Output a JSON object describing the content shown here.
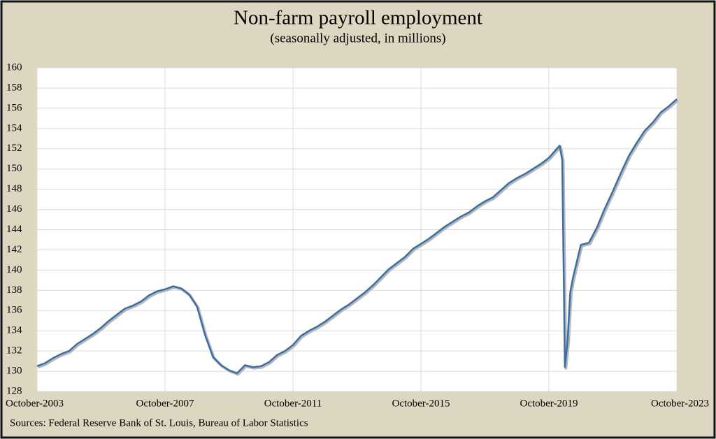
{
  "chart_data": {
    "type": "line",
    "title": "Non-farm payroll employment",
    "subtitle": "(seasonally adjusted, in millions)",
    "source": "Sources: Federal Reserve Bank of St. Louis, Bureau of Labor Statistics",
    "x": [
      "2003-10",
      "2004-01",
      "2004-04",
      "2004-07",
      "2004-10",
      "2005-01",
      "2005-04",
      "2005-07",
      "2005-10",
      "2006-01",
      "2006-04",
      "2006-07",
      "2006-10",
      "2007-01",
      "2007-04",
      "2007-07",
      "2007-10",
      "2008-01",
      "2008-04",
      "2008-07",
      "2008-10",
      "2009-01",
      "2009-04",
      "2009-07",
      "2009-10",
      "2010-01",
      "2010-04",
      "2010-07",
      "2010-10",
      "2011-01",
      "2011-04",
      "2011-07",
      "2011-10",
      "2012-01",
      "2012-04",
      "2012-07",
      "2012-10",
      "2013-01",
      "2013-04",
      "2013-07",
      "2013-10",
      "2014-01",
      "2014-04",
      "2014-07",
      "2014-10",
      "2015-01",
      "2015-04",
      "2015-07",
      "2015-10",
      "2016-01",
      "2016-04",
      "2016-07",
      "2016-10",
      "2017-01",
      "2017-04",
      "2017-07",
      "2017-10",
      "2018-01",
      "2018-04",
      "2018-07",
      "2018-10",
      "2019-01",
      "2019-04",
      "2019-07",
      "2019-10",
      "2020-01",
      "2020-02",
      "2020-03",
      "2020-04",
      "2020-05",
      "2020-06",
      "2020-07",
      "2020-10",
      "2021-01",
      "2021-04",
      "2021-07",
      "2021-10",
      "2022-01",
      "2022-04",
      "2022-07",
      "2022-10",
      "2023-01",
      "2023-04",
      "2023-07",
      "2023-10"
    ],
    "series": [
      {
        "name": "Non-farm payroll employment",
        "color": "#3a6ea5",
        "values": [
          130.5,
          130.8,
          131.3,
          131.7,
          132.0,
          132.7,
          133.2,
          133.7,
          134.3,
          135.0,
          135.6,
          136.2,
          136.5,
          136.9,
          137.5,
          137.9,
          138.1,
          138.4,
          138.2,
          137.6,
          136.4,
          133.6,
          131.4,
          130.6,
          130.1,
          129.8,
          130.6,
          130.4,
          130.5,
          130.9,
          131.6,
          132.0,
          132.6,
          133.5,
          134.0,
          134.4,
          134.9,
          135.5,
          136.1,
          136.6,
          137.2,
          137.8,
          138.5,
          139.3,
          140.1,
          140.7,
          141.3,
          142.1,
          142.6,
          143.1,
          143.7,
          144.3,
          144.8,
          145.3,
          145.7,
          146.3,
          146.8,
          147.2,
          147.9,
          148.6,
          149.1,
          149.5,
          150.0,
          150.5,
          151.1,
          152.0,
          152.3,
          150.9,
          130.4,
          133.0,
          137.8,
          139.2,
          142.5,
          142.7,
          144.2,
          146.1,
          147.8,
          149.6,
          151.3,
          152.6,
          153.8,
          154.6,
          155.6,
          156.2,
          156.9
        ]
      }
    ],
    "ylim": [
      128,
      160
    ],
    "yticks": [
      128,
      130,
      132,
      134,
      136,
      138,
      140,
      142,
      144,
      146,
      148,
      150,
      152,
      154,
      156,
      158,
      160
    ],
    "xlim": [
      "2003-10",
      "2023-10"
    ],
    "xticks": [
      {
        "value": "2003-10",
        "label": "October-2003"
      },
      {
        "value": "2007-10",
        "label": "October-2007"
      },
      {
        "value": "2011-10",
        "label": "October-2011"
      },
      {
        "value": "2015-10",
        "label": "October-2015"
      },
      {
        "value": "2019-10",
        "label": "October-2019"
      },
      {
        "value": "2023-10",
        "label": "October-2023"
      }
    ],
    "grid": true
  }
}
